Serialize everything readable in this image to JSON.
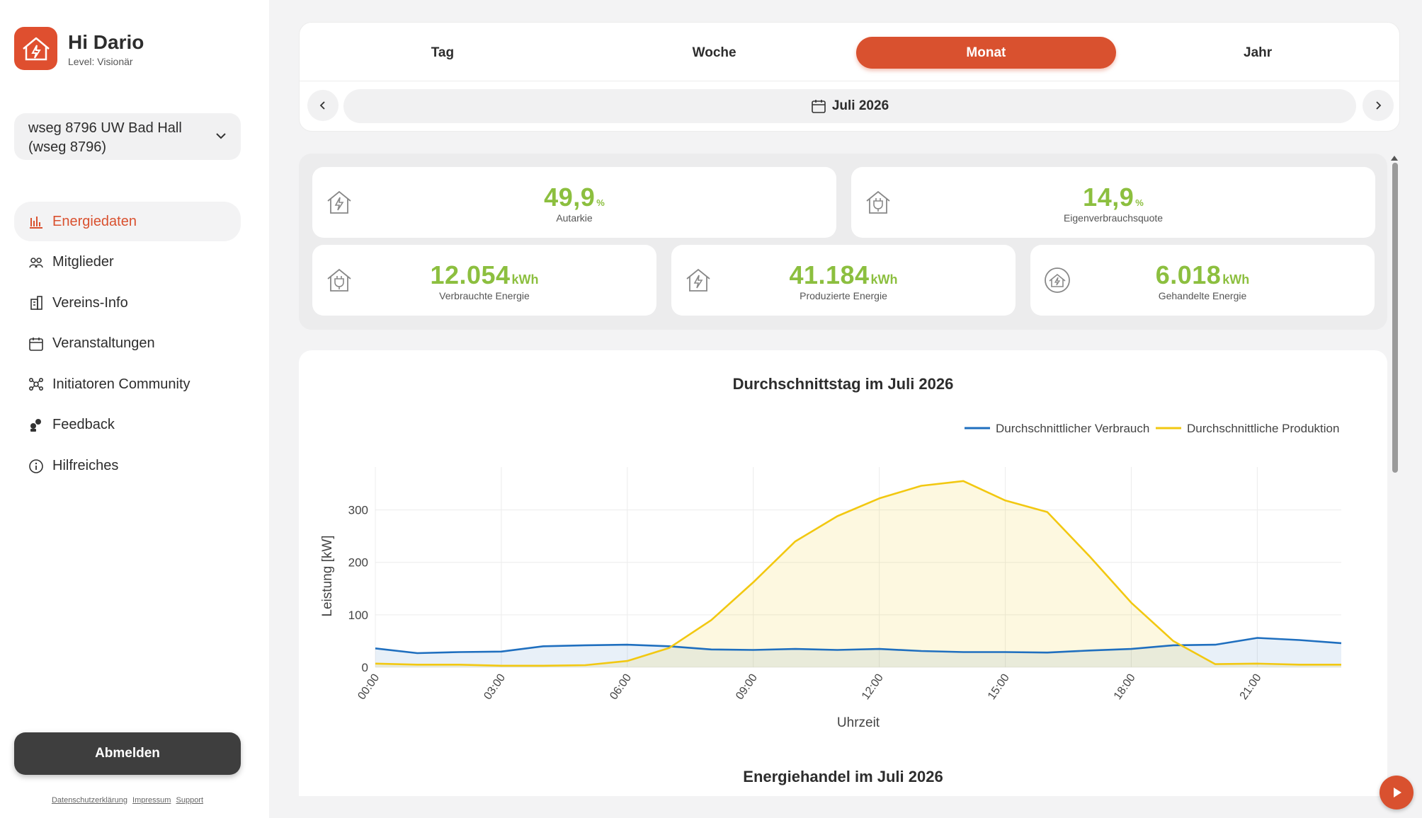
{
  "user": {
    "greeting": "Hi Dario",
    "level": "Level: Visionär"
  },
  "community": {
    "selected": "wseg 8796 UW Bad Hall (wseg 8796)"
  },
  "nav": {
    "items": [
      {
        "label": "Energiedaten",
        "icon": "bar-chart-icon"
      },
      {
        "label": "Mitglieder",
        "icon": "members-icon"
      },
      {
        "label": "Vereins-Info",
        "icon": "building-icon"
      },
      {
        "label": "Veranstaltungen",
        "icon": "calendar-icon"
      },
      {
        "label": "Initiatoren Community",
        "icon": "network-icon"
      },
      {
        "label": "Feedback",
        "icon": "feedback-icon"
      },
      {
        "label": "Hilfreiches",
        "icon": "info-icon"
      }
    ]
  },
  "logout_label": "Abmelden",
  "footer": {
    "privacy": "Datenschutzerklärung",
    "imprint": "Impressum",
    "support": "Support"
  },
  "tabs": [
    "Tag",
    "Woche",
    "Monat",
    "Jahr"
  ],
  "active_tab": "Monat",
  "period": {
    "label": "Juli 2026"
  },
  "kpis": {
    "autarkie": {
      "value": "49,9",
      "unit": "%",
      "label": "Autarkie"
    },
    "eigenverbrauch": {
      "value": "14,9",
      "unit": "%",
      "label": "Eigenverbrauchsquote"
    },
    "verbraucht": {
      "value": "12.054",
      "unit": "kWh",
      "label": "Verbrauchte Energie"
    },
    "produziert": {
      "value": "41.184",
      "unit": "kWh",
      "label": "Produzierte Energie"
    },
    "gehandelt": {
      "value": "6.018",
      "unit": "kWh",
      "label": "Gehandelte Energie"
    }
  },
  "colors": {
    "accent": "#d9512f",
    "kpi_green": "#8cbf3f",
    "consumption": "#1f6fbf",
    "production": "#f2c811"
  },
  "chart_data": {
    "type": "area",
    "title": "Durchschnittstag im Juli 2026",
    "xlabel": "Uhrzeit",
    "ylabel": "Leistung [kW]",
    "x_ticks": [
      "00:00",
      "03:00",
      "06:00",
      "09:00",
      "12:00",
      "15:00",
      "18:00",
      "21:00"
    ],
    "y_ticks": [
      0,
      100,
      200,
      300
    ],
    "xlim": [
      0,
      23
    ],
    "ylim": [
      0,
      375
    ],
    "grid": true,
    "legend_position": "top-right",
    "x": [
      0,
      1,
      2,
      3,
      4,
      5,
      6,
      7,
      8,
      9,
      10,
      11,
      12,
      13,
      14,
      15,
      16,
      17,
      18,
      19,
      20,
      21,
      22,
      23
    ],
    "series": [
      {
        "name": "Durchschnittlicher Verbrauch",
        "color": "#1f6fbf",
        "values": [
          36,
          27,
          29,
          30,
          40,
          42,
          43,
          40,
          34,
          33,
          35,
          33,
          35,
          31,
          29,
          29,
          28,
          32,
          35,
          42,
          43,
          56,
          52,
          46
        ]
      },
      {
        "name": "Durchschnittliche Produktion",
        "color": "#f2c811",
        "values": [
          7,
          5,
          5,
          3,
          3,
          4,
          12,
          37,
          90,
          162,
          240,
          288,
          322,
          346,
          355,
          318,
          296,
          212,
          123,
          50,
          6,
          7,
          5,
          5
        ]
      }
    ]
  },
  "next_section_title": "Energiehandel im Juli 2026"
}
